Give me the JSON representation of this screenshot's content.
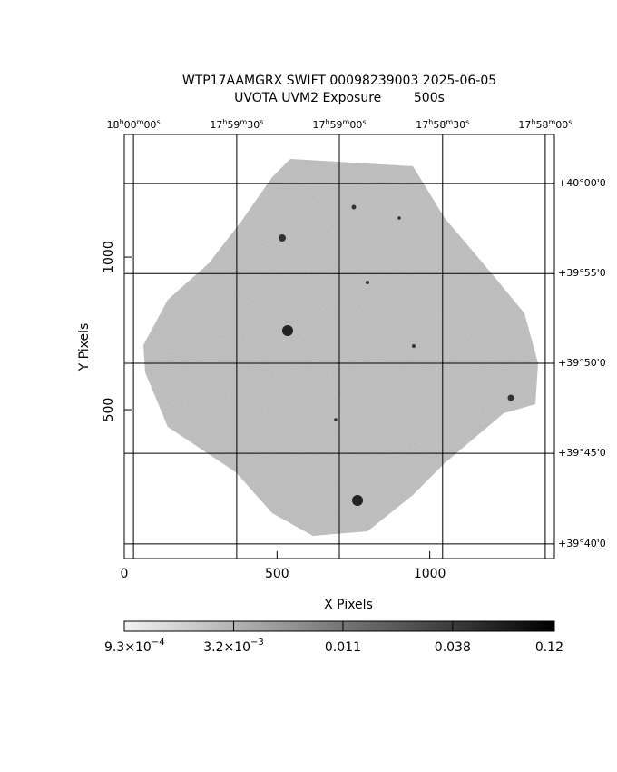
{
  "chart_data": {
    "type": "image",
    "title": "WTP17AAMGRX SWIFT 00098239003 2025-06-05",
    "subtitle": "UVOTA UVM2 Exposure        500s",
    "x_label": "X Pixels",
    "y_label": "Y Pixels",
    "xlim": [
      0,
      1408
    ],
    "ylim": [
      12,
      1402
    ],
    "xticks": [
      0,
      500,
      1000
    ],
    "yticks": [
      500,
      1000
    ],
    "ra_ticks": [
      {
        "value": 30,
        "label": [
          "18",
          "h",
          "00",
          "m",
          "00",
          "s"
        ]
      },
      {
        "value": 368,
        "label": [
          "17",
          "h",
          "59",
          "m",
          "30",
          "s"
        ]
      },
      {
        "value": 704,
        "label": [
          "17",
          "h",
          "59",
          "m",
          "00",
          "s"
        ]
      },
      {
        "value": 1042,
        "label": [
          "17",
          "h",
          "58",
          "m",
          "30",
          "s"
        ]
      },
      {
        "value": 1378,
        "label": [
          "17",
          "h",
          "58",
          "m",
          "00",
          "s"
        ]
      }
    ],
    "dec_ticks": [
      {
        "value": 1241,
        "label": "+40°00'0"
      },
      {
        "value": 946,
        "label": "+39°55'0"
      },
      {
        "value": 652,
        "label": "+39°50'0"
      },
      {
        "value": 357,
        "label": "+39°45'0"
      },
      {
        "value": 60,
        "label": "+39°40'0"
      }
    ],
    "colorbar": {
      "log": true,
      "lim": [
        0.00093,
        0.12
      ],
      "ticks": [
        {
          "value": 0.00093,
          "label": "9.3×10",
          "exponent": "−4"
        },
        {
          "value": 0.0032,
          "label": "3.2×10",
          "exponent": "−3"
        },
        {
          "value": 0.011,
          "label": "0.011"
        },
        {
          "value": 0.038,
          "label": "0.038"
        },
        {
          "value": 0.12,
          "label": "0.12"
        }
      ]
    }
  }
}
